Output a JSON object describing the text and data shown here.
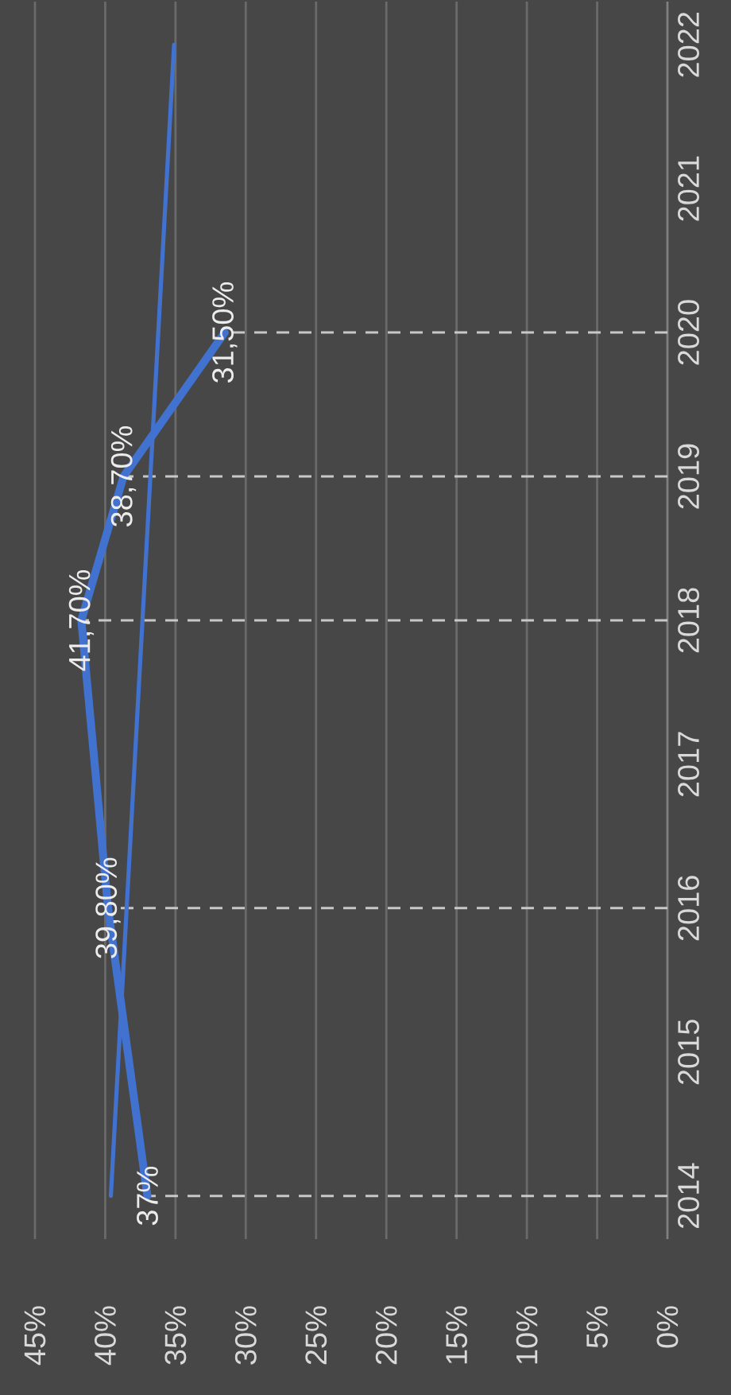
{
  "chart_data": {
    "type": "line",
    "orientation": "horizontal",
    "x": [
      2014,
      2016,
      2018,
      2019,
      2020
    ],
    "series": [
      {
        "color": "#4272d0",
        "values": [
          37,
          39.8,
          41.7,
          38.7,
          31.5
        ],
        "value_labels": [
          "37%",
          "39,80%",
          "41,70%",
          "38,70%",
          "31,50%"
        ]
      },
      {
        "type": "line",
        "color": "#4272d0",
        "x": [
          2014,
          2022
        ],
        "values": [
          39.6,
          35.1
        ]
      }
    ],
    "xlim": [
      45,
      0
    ],
    "xticks": [
      {
        "value": 45,
        "label": "45%"
      },
      {
        "value": 40,
        "label": "40%"
      },
      {
        "value": 35,
        "label": "35%"
      },
      {
        "value": 30,
        "label": "30%"
      },
      {
        "value": 25,
        "label": "25%"
      },
      {
        "value": 20,
        "label": "20%"
      },
      {
        "value": 15,
        "label": "15%"
      },
      {
        "value": 10,
        "label": "10%"
      },
      {
        "value": 5,
        "label": "5%"
      },
      {
        "value": 0,
        "label": "0%"
      }
    ],
    "ylim": [
      2013.7,
      2022.3
    ],
    "yticks": [
      2014,
      2015,
      2016,
      2017,
      2018,
      2019,
      2020,
      2021,
      2022
    ],
    "grid": "x",
    "ref_lines": [
      {
        "axis": "y",
        "value": 2014,
        "color": "#c8c8c8",
        "line_style": "dashed"
      },
      {
        "axis": "y",
        "value": 2016,
        "color": "#c8c8c8",
        "line_style": "dashed"
      },
      {
        "axis": "y",
        "value": 2018,
        "color": "#c8c8c8",
        "line_style": "dashed"
      },
      {
        "axis": "y",
        "value": 2019,
        "color": "#c8c8c8",
        "line_style": "dashed"
      },
      {
        "axis": "y",
        "value": 2020,
        "color": "#c8c8c8",
        "line_style": "dashed"
      }
    ]
  }
}
